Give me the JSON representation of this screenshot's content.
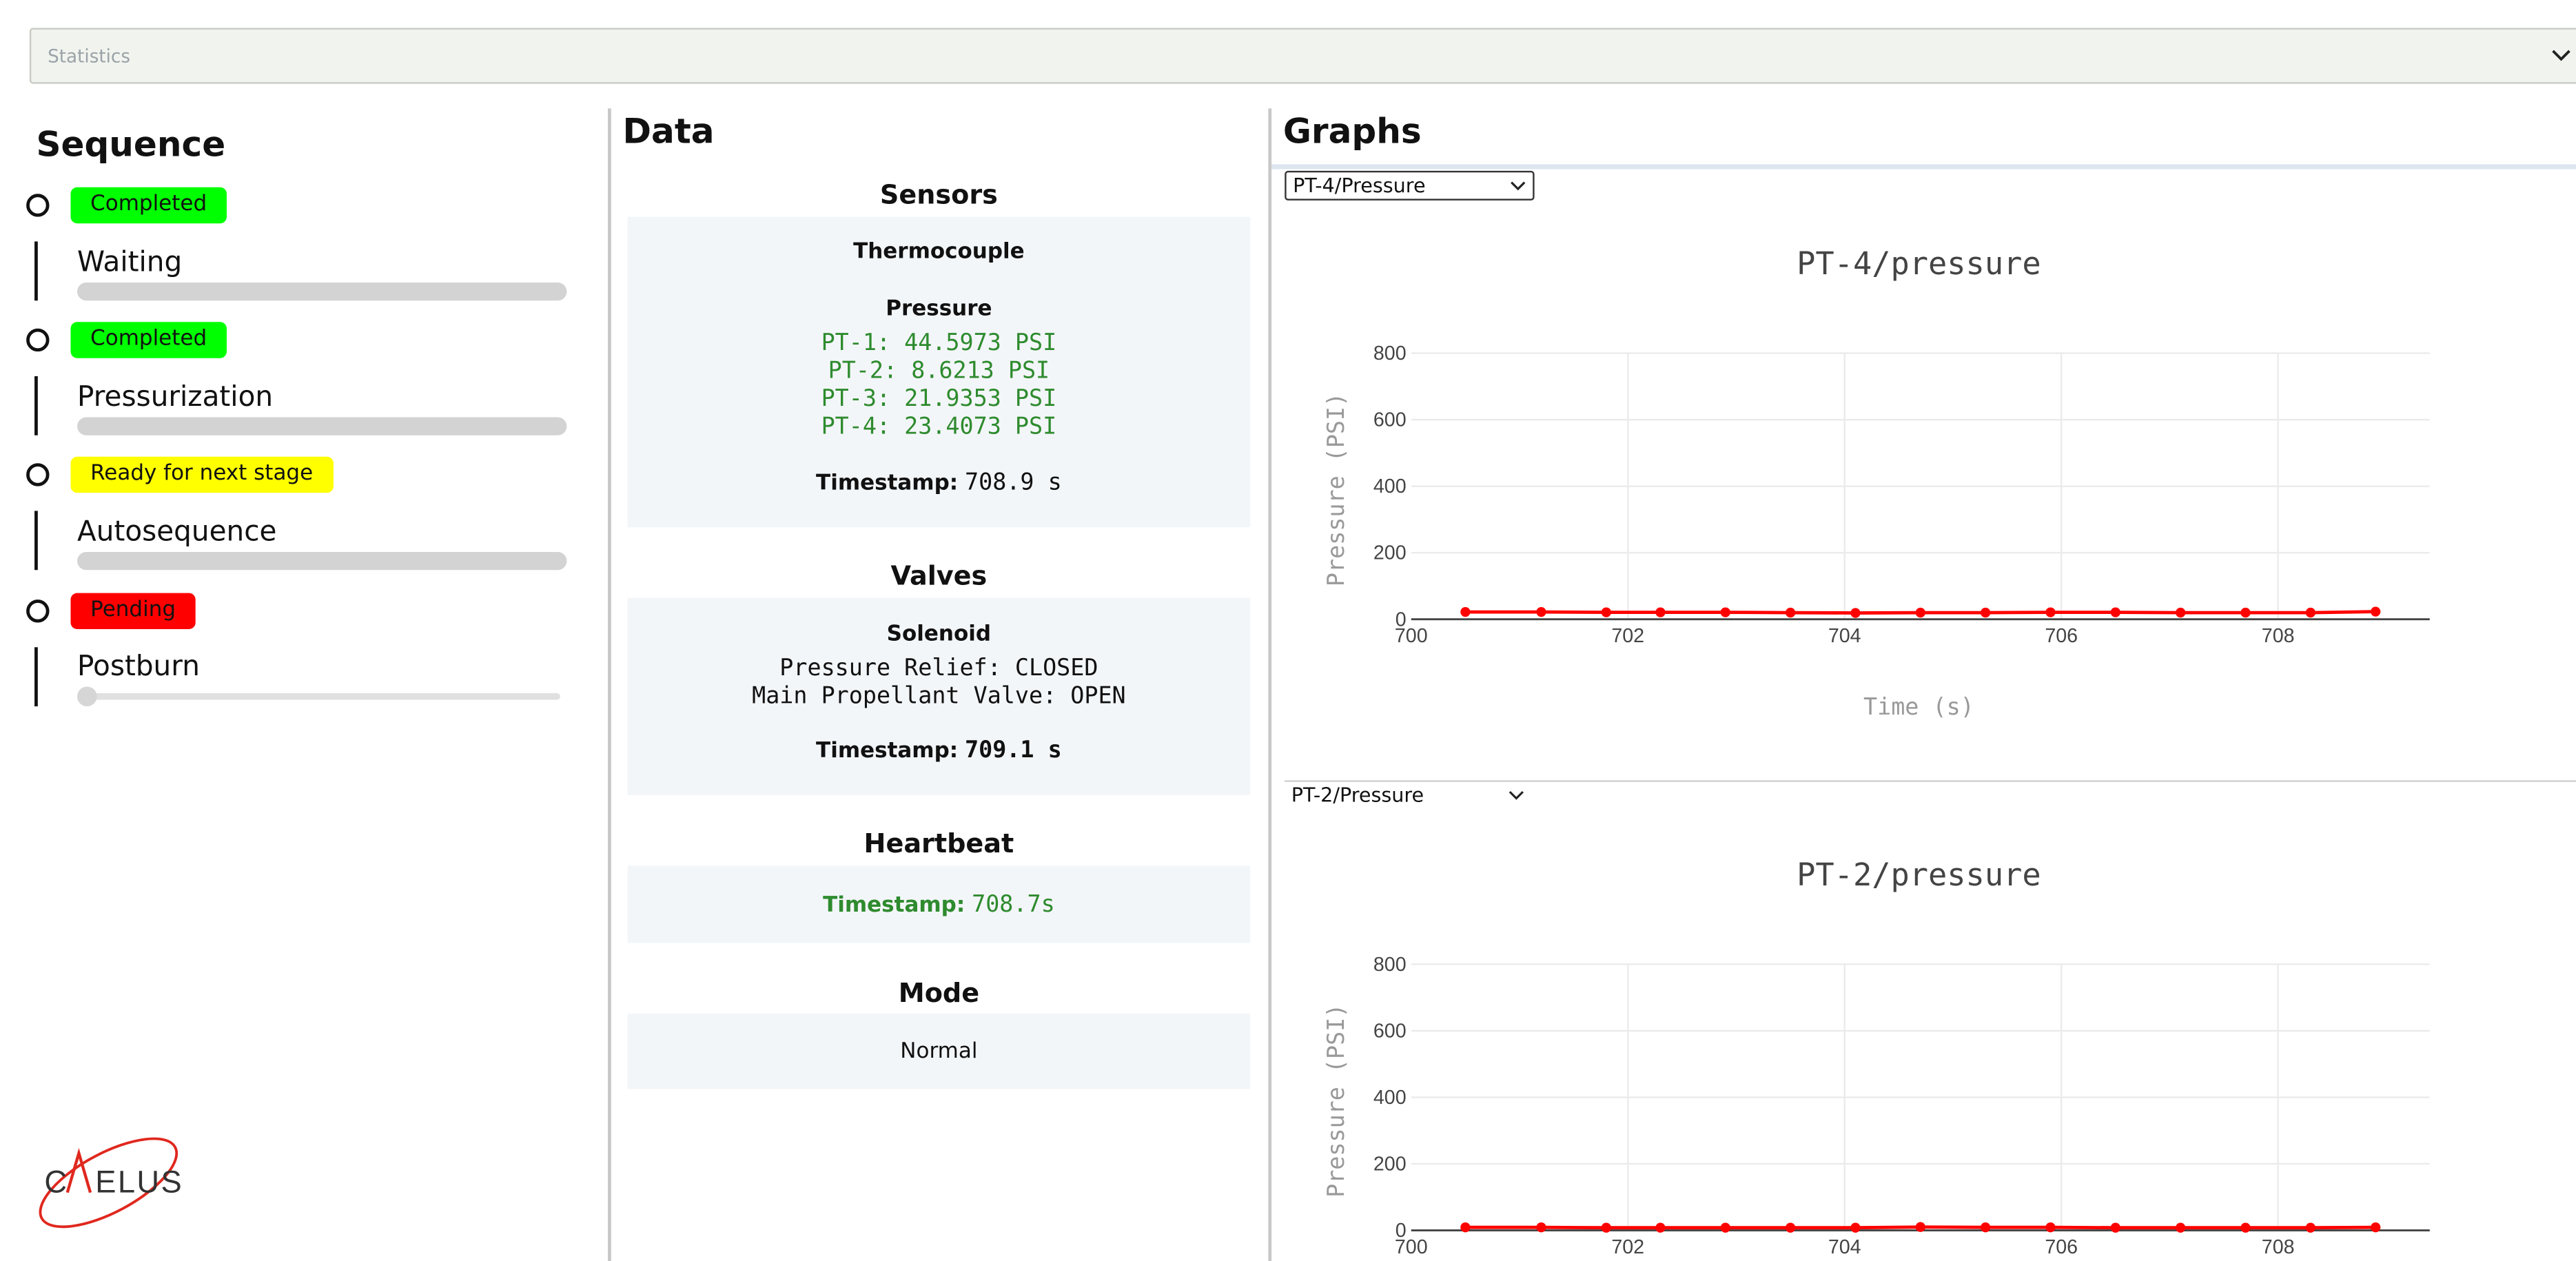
{
  "statistics": {
    "label": "Statistics"
  },
  "sequence": {
    "title": "Sequence",
    "stages": [
      {
        "status": "Completed",
        "status_color": "#00ff00",
        "name": "Waiting",
        "progress": 1.0
      },
      {
        "status": "Completed",
        "status_color": "#00ff00",
        "name": "Pressurization",
        "progress": 1.0
      },
      {
        "status": "Ready for next stage",
        "status_color": "#ffff00",
        "name": "Autosequence",
        "progress": 1.0
      },
      {
        "status": "Pending",
        "status_color": "#ff0000",
        "name": "Postburn",
        "progress": 0.0
      }
    ]
  },
  "logo": {
    "text": "CAELUS",
    "color": "#e0281e"
  },
  "data": {
    "title": "Data",
    "sensors": {
      "title": "Sensors",
      "thermocouple_label": "Thermocouple",
      "pressure_label": "Pressure",
      "readings": [
        "PT-1: 44.5973 PSI",
        "PT-2: 8.6213 PSI",
        "PT-3: 21.9353 PSI",
        "PT-4: 23.4073 PSI"
      ],
      "timestamp_label": "Timestamp:",
      "timestamp_value": "708.9 s"
    },
    "valves": {
      "title": "Valves",
      "solenoid_label": "Solenoid",
      "states": [
        "Pressure Relief: CLOSED",
        "Main Propellant Valve: OPEN"
      ],
      "timestamp_label": "Timestamp:",
      "timestamp_value": "709.1 s"
    },
    "heartbeat": {
      "title": "Heartbeat",
      "timestamp_label": "Timestamp:",
      "timestamp_value": "708.7s"
    },
    "mode": {
      "title": "Mode",
      "value": "Normal"
    }
  },
  "graphs": {
    "title": "Graphs",
    "selectors": [
      "PT-4/Pressure",
      "PT-2/Pressure"
    ]
  },
  "chart_data": [
    {
      "type": "line",
      "title": "PT-4/pressure",
      "xlabel": "Time (s)",
      "ylabel": "Pressure (PSI)",
      "xlim": [
        700,
        709.4
      ],
      "ylim": [
        0,
        800
      ],
      "xticks": [
        700,
        702,
        704,
        706,
        708
      ],
      "yticks": [
        0,
        200,
        400,
        600,
        800
      ],
      "grid": true,
      "color": "#ff0000",
      "series": [
        {
          "x": [
            700.5,
            701.2,
            701.8,
            702.3,
            702.9,
            703.5,
            704.1,
            704.7,
            705.3,
            705.9,
            706.5,
            707.1,
            707.7,
            708.3,
            708.9
          ],
          "y": [
            22,
            22,
            21,
            21,
            21,
            20,
            19,
            20,
            20,
            21,
            21,
            20,
            20,
            20,
            23
          ]
        }
      ]
    },
    {
      "type": "line",
      "title": "PT-2/pressure",
      "xlabel": "",
      "ylabel": "Pressure (PSI)",
      "xlim": [
        700,
        709.4
      ],
      "ylim": [
        0,
        800
      ],
      "xticks": [
        700,
        702,
        704,
        706,
        708
      ],
      "yticks": [
        0,
        200,
        400,
        600,
        800
      ],
      "grid": true,
      "color": "#ff0000",
      "series": [
        {
          "x": [
            700.5,
            701.2,
            701.8,
            702.3,
            702.9,
            703.5,
            704.1,
            704.7,
            705.3,
            705.9,
            706.5,
            707.1,
            707.7,
            708.3,
            708.9
          ],
          "y": [
            9,
            9,
            8,
            8,
            8,
            8,
            8,
            10,
            9,
            9,
            8,
            8,
            8,
            8,
            9
          ]
        }
      ]
    }
  ]
}
